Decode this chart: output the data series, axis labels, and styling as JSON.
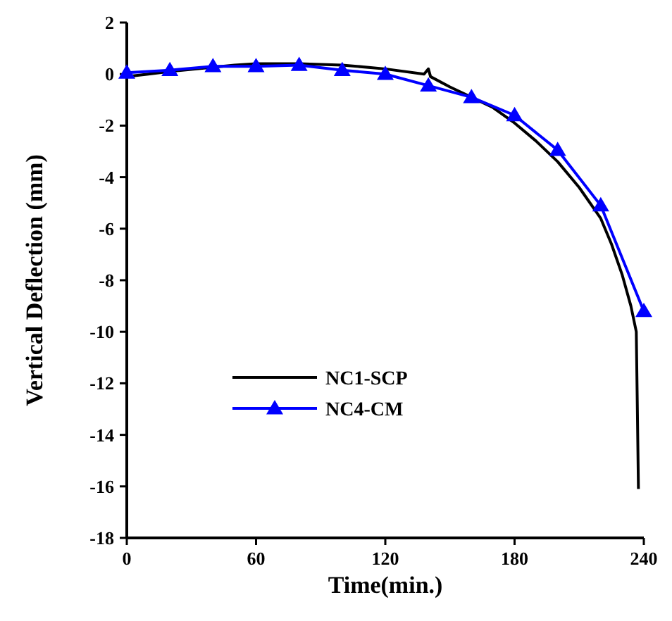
{
  "chart_data": {
    "type": "line",
    "xlabel": "Time(min.)",
    "ylabel": "Vertical Deflection (mm)",
    "xlim": [
      0,
      240
    ],
    "xticks": [
      0,
      60,
      120,
      180,
      240
    ],
    "ylim": [
      -18,
      2
    ],
    "yticks": [
      -18,
      -16,
      -14,
      -12,
      -10,
      -8,
      -6,
      -4,
      -2,
      0,
      2
    ],
    "legend": "left",
    "grid": false,
    "series": [
      {
        "name": "NC1-SCP",
        "color": "#000000",
        "marker": "none",
        "x": [
          0,
          10,
          20,
          50,
          60,
          80,
          100,
          120,
          138,
          140,
          141,
          150,
          160,
          170,
          180,
          190,
          200,
          210,
          220,
          225,
          230,
          234,
          236.5,
          237,
          237.5
        ],
        "values": [
          -0.1,
          0,
          0.1,
          0.35,
          0.4,
          0.4,
          0.35,
          0.2,
          0,
          0.2,
          -0.1,
          -0.5,
          -0.9,
          -1.3,
          -1.9,
          -2.6,
          -3.4,
          -4.4,
          -5.6,
          -6.6,
          -7.8,
          -9,
          -10,
          -13,
          -16.1
        ]
      },
      {
        "name": "NC4-CM",
        "color": "#0000ff",
        "marker": "triangle",
        "x": [
          0,
          20,
          40,
          60,
          80,
          100,
          120,
          140,
          160,
          180,
          200,
          220,
          240
        ],
        "values": [
          0.05,
          0.15,
          0.3,
          0.3,
          0.35,
          0.15,
          0,
          -0.45,
          -0.9,
          -1.6,
          -2.95,
          -5.1,
          -9.2
        ]
      }
    ]
  }
}
